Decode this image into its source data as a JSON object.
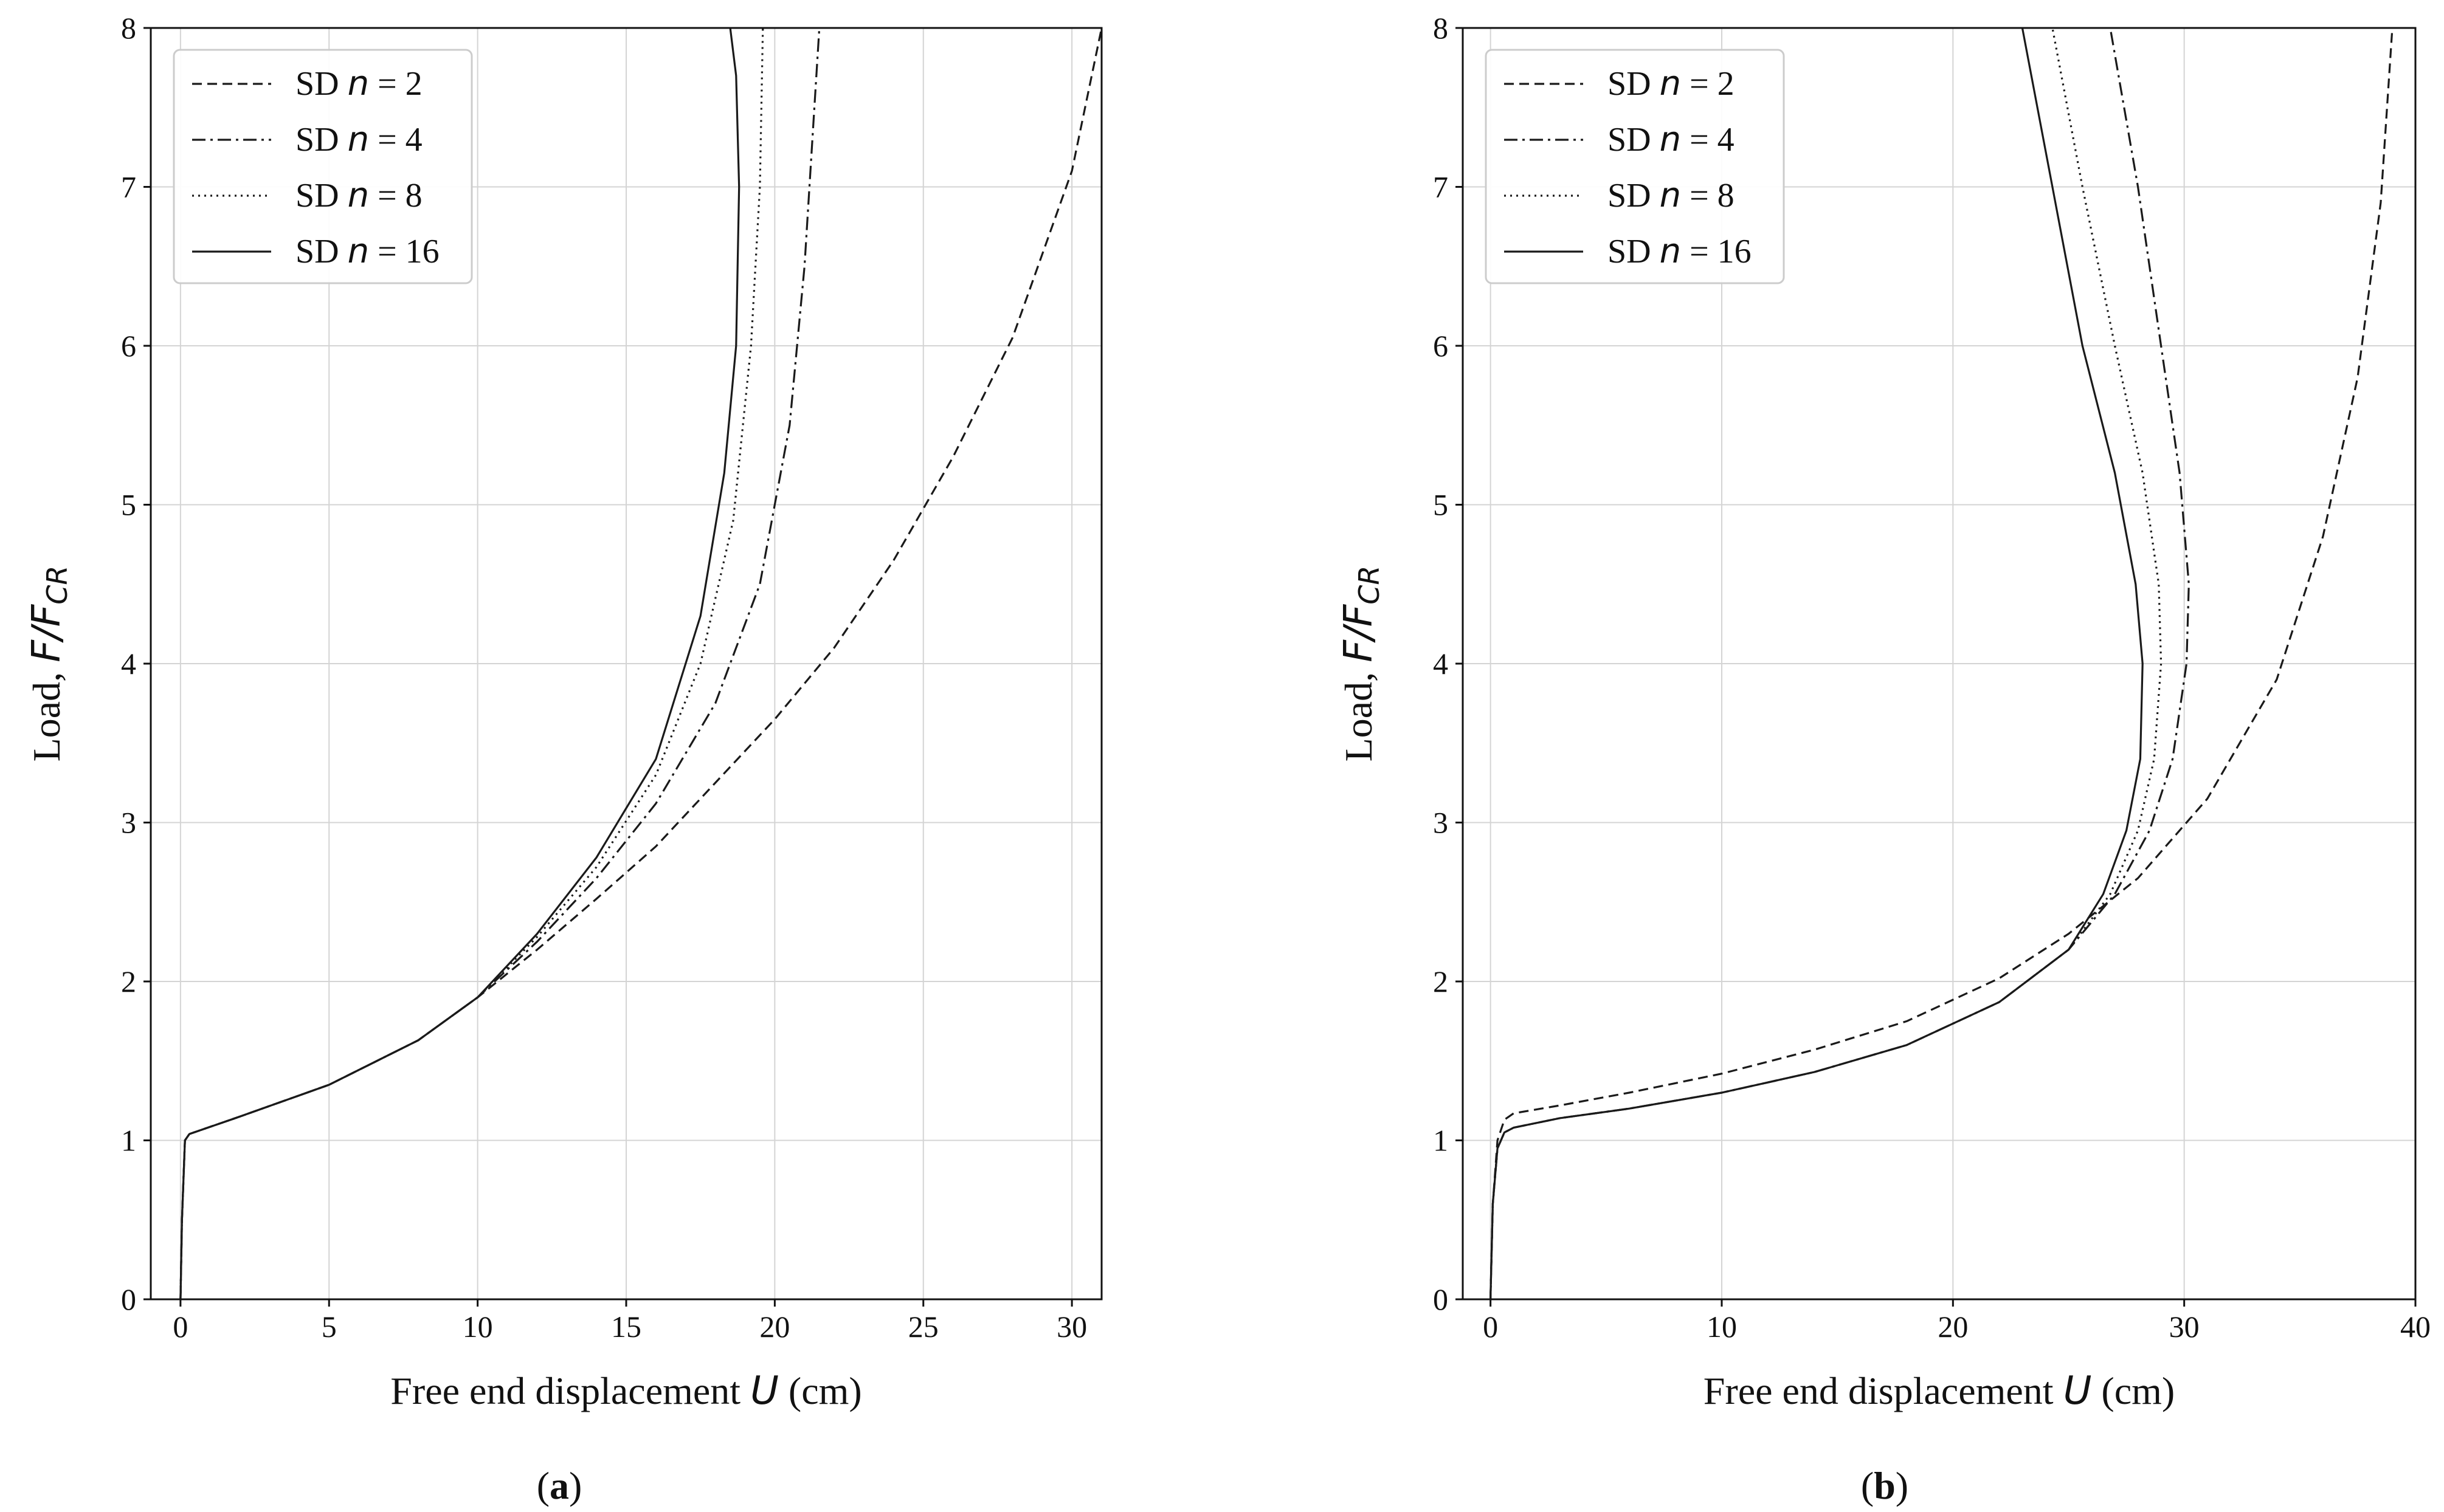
{
  "chart_data": [
    {
      "id": "a",
      "type": "line",
      "caption": "a",
      "xlabel": "Free end displacement",
      "xlabel_var": "U",
      "xlabel_unit": "(cm)",
      "ylabel": "Load,",
      "ylabel_var": "F/F",
      "ylabel_sub": "CR",
      "xlim": [
        -1,
        31
      ],
      "ylim": [
        0,
        8
      ],
      "xticks": [
        0,
        5,
        10,
        15,
        20,
        25,
        30
      ],
      "yticks": [
        0,
        1,
        2,
        3,
        4,
        5,
        6,
        7,
        8
      ],
      "grid": true,
      "legend_position": "top-left",
      "series": [
        {
          "name": "SD n = 2",
          "label_pre": "SD ",
          "label_var": "n",
          "label_post": " = 2",
          "style": "dashed",
          "x": [
            0,
            0.05,
            0.15,
            0.3,
            2,
            5,
            8,
            10,
            12,
            14,
            16,
            18,
            20,
            22,
            24,
            26,
            28,
            30,
            31
          ],
          "y": [
            0,
            0.5,
            1.0,
            1.04,
            1.15,
            1.35,
            1.63,
            1.9,
            2.2,
            2.52,
            2.85,
            3.25,
            3.65,
            4.1,
            4.65,
            5.3,
            6.05,
            7.1,
            8.0
          ]
        },
        {
          "name": "SD n = 4",
          "label_pre": "SD ",
          "label_var": "n",
          "label_post": " = 4",
          "style": "dashdot",
          "x": [
            0,
            0.05,
            0.15,
            0.3,
            2,
            5,
            8,
            10,
            12,
            14,
            16,
            18,
            19.5,
            20.5,
            21.0,
            21.3,
            21.5
          ],
          "y": [
            0,
            0.5,
            1.0,
            1.04,
            1.15,
            1.35,
            1.63,
            1.9,
            2.25,
            2.65,
            3.12,
            3.75,
            4.5,
            5.5,
            6.5,
            7.4,
            8.0
          ]
        },
        {
          "name": "SD n = 8",
          "label_pre": "SD ",
          "label_var": "n",
          "label_post": " = 8",
          "style": "dotted",
          "x": [
            0,
            0.05,
            0.15,
            0.3,
            2,
            5,
            8,
            10,
            12,
            14,
            16,
            17.5,
            18.6,
            19.2,
            19.5,
            19.6
          ],
          "y": [
            0,
            0.5,
            1.0,
            1.04,
            1.15,
            1.35,
            1.63,
            1.9,
            2.28,
            2.72,
            3.3,
            4.0,
            4.9,
            6.0,
            7.0,
            8.0
          ]
        },
        {
          "name": "SD n = 16",
          "label_pre": "SD ",
          "label_var": "n",
          "label_post": " = 16",
          "style": "solid",
          "x": [
            0,
            0.05,
            0.15,
            0.3,
            2,
            5,
            8,
            10,
            12,
            14,
            16,
            17.5,
            18.3,
            18.7,
            18.8,
            18.7,
            18.5
          ],
          "y": [
            0,
            0.5,
            1.0,
            1.04,
            1.15,
            1.35,
            1.63,
            1.9,
            2.3,
            2.78,
            3.4,
            4.3,
            5.2,
            6.0,
            7.0,
            7.7,
            8.0
          ]
        }
      ]
    },
    {
      "id": "b",
      "type": "line",
      "caption": "b",
      "xlabel": "Free end displacement",
      "xlabel_var": "U",
      "xlabel_unit": "(cm)",
      "ylabel": "Load,",
      "ylabel_var": "F/F",
      "ylabel_sub": "CR",
      "xlim": [
        -1.2,
        40
      ],
      "ylim": [
        0,
        8
      ],
      "xticks": [
        0,
        10,
        20,
        30,
        40
      ],
      "yticks": [
        0,
        1,
        2,
        3,
        4,
        5,
        6,
        7,
        8
      ],
      "grid": true,
      "legend_position": "top-left",
      "series": [
        {
          "name": "SD n = 2",
          "label_pre": "SD ",
          "label_var": "n",
          "label_post": " = 2",
          "style": "dashed",
          "x": [
            0,
            0.1,
            0.3,
            0.6,
            1.0,
            3,
            6,
            10,
            14,
            18,
            22,
            25,
            28,
            31,
            34,
            36,
            37.5,
            38.5,
            39.0
          ],
          "y": [
            0,
            0.6,
            1.0,
            1.13,
            1.17,
            1.22,
            1.3,
            1.42,
            1.57,
            1.75,
            2.02,
            2.3,
            2.65,
            3.15,
            3.9,
            4.8,
            5.8,
            6.9,
            8.0
          ]
        },
        {
          "name": "SD n = 4",
          "label_pre": "SD ",
          "label_var": "n",
          "label_post": " = 4",
          "style": "dashdot",
          "x": [
            0,
            0.1,
            0.3,
            0.6,
            1.0,
            3,
            6,
            10,
            14,
            18,
            22,
            25,
            27,
            28.5,
            29.5,
            30.1,
            30.2,
            29.8,
            29.0,
            28.0,
            26.8
          ],
          "y": [
            0,
            0.6,
            0.95,
            1.05,
            1.08,
            1.14,
            1.2,
            1.3,
            1.43,
            1.6,
            1.87,
            2.2,
            2.55,
            2.95,
            3.4,
            4.0,
            4.5,
            5.2,
            6.0,
            7.0,
            8.0
          ]
        },
        {
          "name": "SD n = 8",
          "label_pre": "SD ",
          "label_var": "n",
          "label_post": " = 8",
          "style": "dotted",
          "x": [
            0,
            0.1,
            0.3,
            0.6,
            1.0,
            3,
            6,
            10,
            14,
            18,
            22,
            25,
            26.8,
            28.0,
            28.7,
            29.0,
            28.9,
            28.2,
            27.0,
            25.6,
            24.3
          ],
          "y": [
            0,
            0.6,
            0.95,
            1.05,
            1.08,
            1.14,
            1.2,
            1.3,
            1.43,
            1.6,
            1.87,
            2.2,
            2.55,
            2.95,
            3.4,
            4.0,
            4.5,
            5.2,
            6.0,
            7.0,
            8.0
          ]
        },
        {
          "name": "SD n = 16",
          "label_pre": "SD ",
          "label_var": "n",
          "label_post": " = 16",
          "style": "solid",
          "x": [
            0,
            0.1,
            0.3,
            0.6,
            1.0,
            3,
            6,
            10,
            14,
            18,
            22,
            25,
            26.5,
            27.5,
            28.1,
            28.2,
            27.9,
            27.0,
            25.6,
            24.3,
            23.0
          ],
          "y": [
            0,
            0.6,
            0.95,
            1.05,
            1.08,
            1.14,
            1.2,
            1.3,
            1.43,
            1.6,
            1.87,
            2.2,
            2.55,
            2.95,
            3.4,
            4.0,
            4.5,
            5.2,
            6.0,
            7.0,
            8.0
          ]
        }
      ]
    }
  ]
}
